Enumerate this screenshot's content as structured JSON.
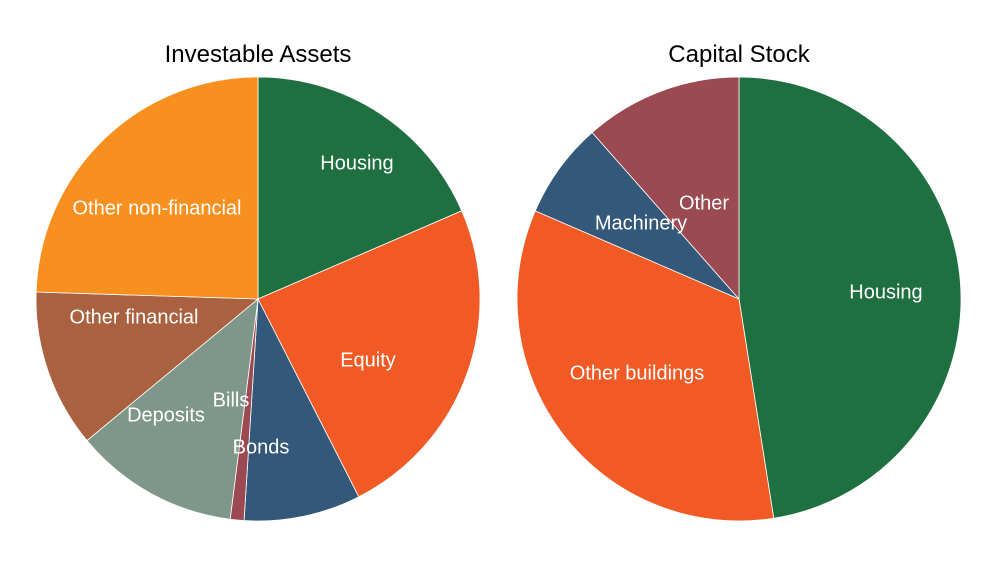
{
  "colors": {
    "green": "#1f7040",
    "orange_red": "#f15a24",
    "navy": "#33587a",
    "maroon": "#9a4a50",
    "grey_green": "#7f978a",
    "brown": "#a9613f",
    "orange": "#f7901e",
    "edge": "#ffffff"
  },
  "chart_data": [
    {
      "type": "pie",
      "title": "Investable Assets",
      "start_angle_deg": 0,
      "direction": "clockwise",
      "slices": [
        {
          "label": "Housing",
          "value": 18.5,
          "color": "#1f7040"
        },
        {
          "label": "Equity",
          "value": 24.0,
          "color": "#f15a24"
        },
        {
          "label": "Bonds",
          "value": 8.5,
          "color": "#33587a"
        },
        {
          "label": "Bills",
          "value": 1.0,
          "color": "#9a4a50"
        },
        {
          "label": "Deposits",
          "value": 12.0,
          "color": "#7f978a"
        },
        {
          "label": "Other financial",
          "value": 11.5,
          "color": "#a9613f"
        },
        {
          "label": "Other non-financial",
          "value": 24.5,
          "color": "#f7901e"
        }
      ]
    },
    {
      "type": "pie",
      "title": "Capital Stock",
      "start_angle_deg": 0,
      "direction": "clockwise",
      "slices": [
        {
          "label": "Housing",
          "value": 47.5,
          "color": "#1f7040"
        },
        {
          "label": "Other buildings",
          "value": 34.0,
          "color": "#f15a24"
        },
        {
          "label": "Machinery",
          "value": 7.0,
          "color": "#33587a"
        },
        {
          "label": "Other",
          "value": 11.5,
          "color": "#9a4a50"
        }
      ]
    }
  ]
}
